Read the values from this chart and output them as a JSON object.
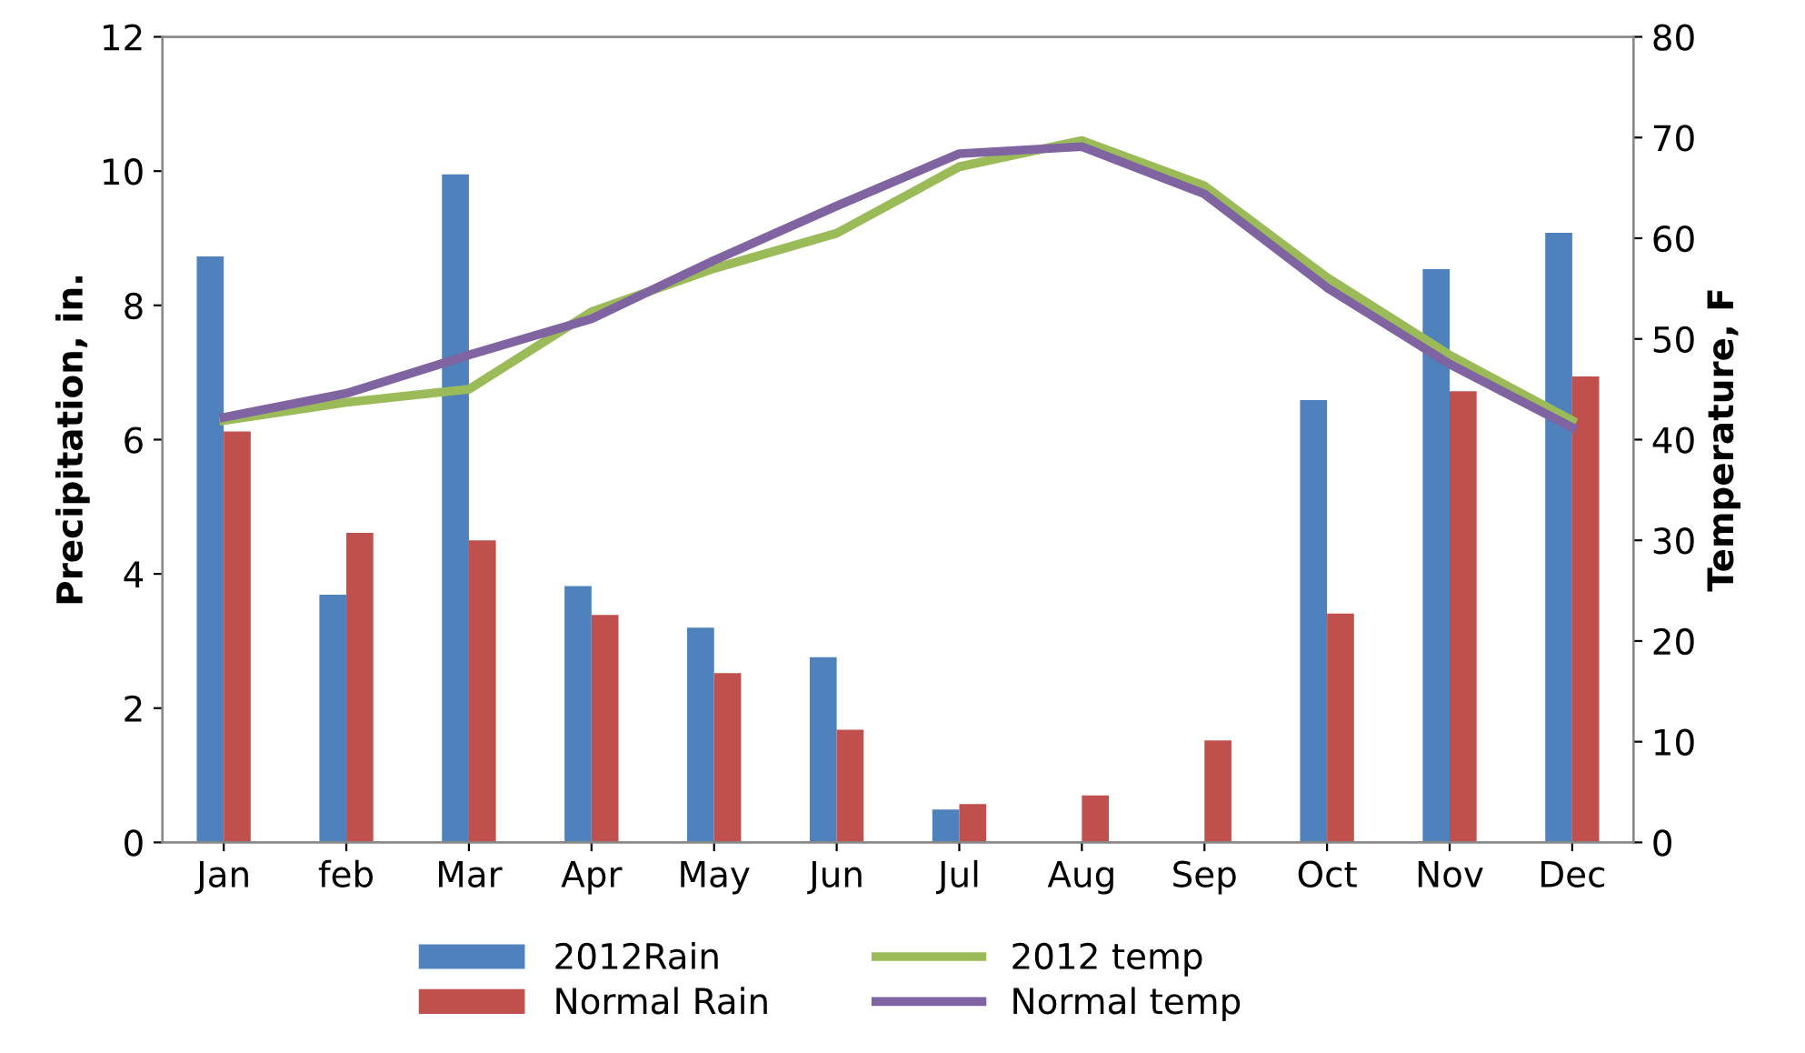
{
  "chart_data": {
    "type": "bar",
    "ylabel": "Precipitation, in.",
    "y2label": "Temperature, F",
    "categories": [
      "Jan",
      "feb",
      "Mar",
      "Apr",
      "May",
      "Jun",
      "Jul",
      "Aug",
      "Sep",
      "Oct",
      "Nov",
      "Dec"
    ],
    "series": [
      {
        "name": "2012Rain",
        "color": "#4f81bd",
        "values": [
          8.73,
          3.69,
          9.95,
          3.82,
          3.2,
          2.76,
          0.49,
          0,
          0,
          6.59,
          8.54,
          9.08
        ]
      },
      {
        "name": "Normal Rain",
        "color": "#c0504d",
        "values": [
          6.12,
          4.61,
          4.5,
          3.39,
          2.52,
          1.68,
          0.57,
          0.7,
          1.52,
          3.41,
          6.72,
          6.94
        ]
      },
      {
        "name": "2012 temp",
        "type": "line",
        "axis": "y2",
        "color": "#9bbb59",
        "values": [
          41.9,
          43.7,
          45,
          52.7,
          57,
          60.5,
          67.1,
          69.7,
          65.2,
          56.1,
          48.4,
          41.9
        ]
      },
      {
        "name": "Normal temp",
        "type": "line",
        "axis": "y2",
        "color": "#8064a2",
        "values": [
          42.2,
          44.6,
          48.4,
          52,
          57.8,
          63.2,
          68.4,
          69.1,
          64.4,
          55.1,
          47.5,
          41.2
        ]
      }
    ],
    "ylim": [
      0,
      12
    ],
    "yticks": [
      0,
      2,
      4,
      6,
      8,
      10,
      12
    ],
    "y2lim": [
      0,
      80
    ],
    "y2ticks": [
      0,
      10,
      20,
      30,
      40,
      50,
      60,
      70,
      80
    ],
    "grid": false,
    "legend": "bottom",
    "marker": "none",
    "line_style": "solid"
  }
}
